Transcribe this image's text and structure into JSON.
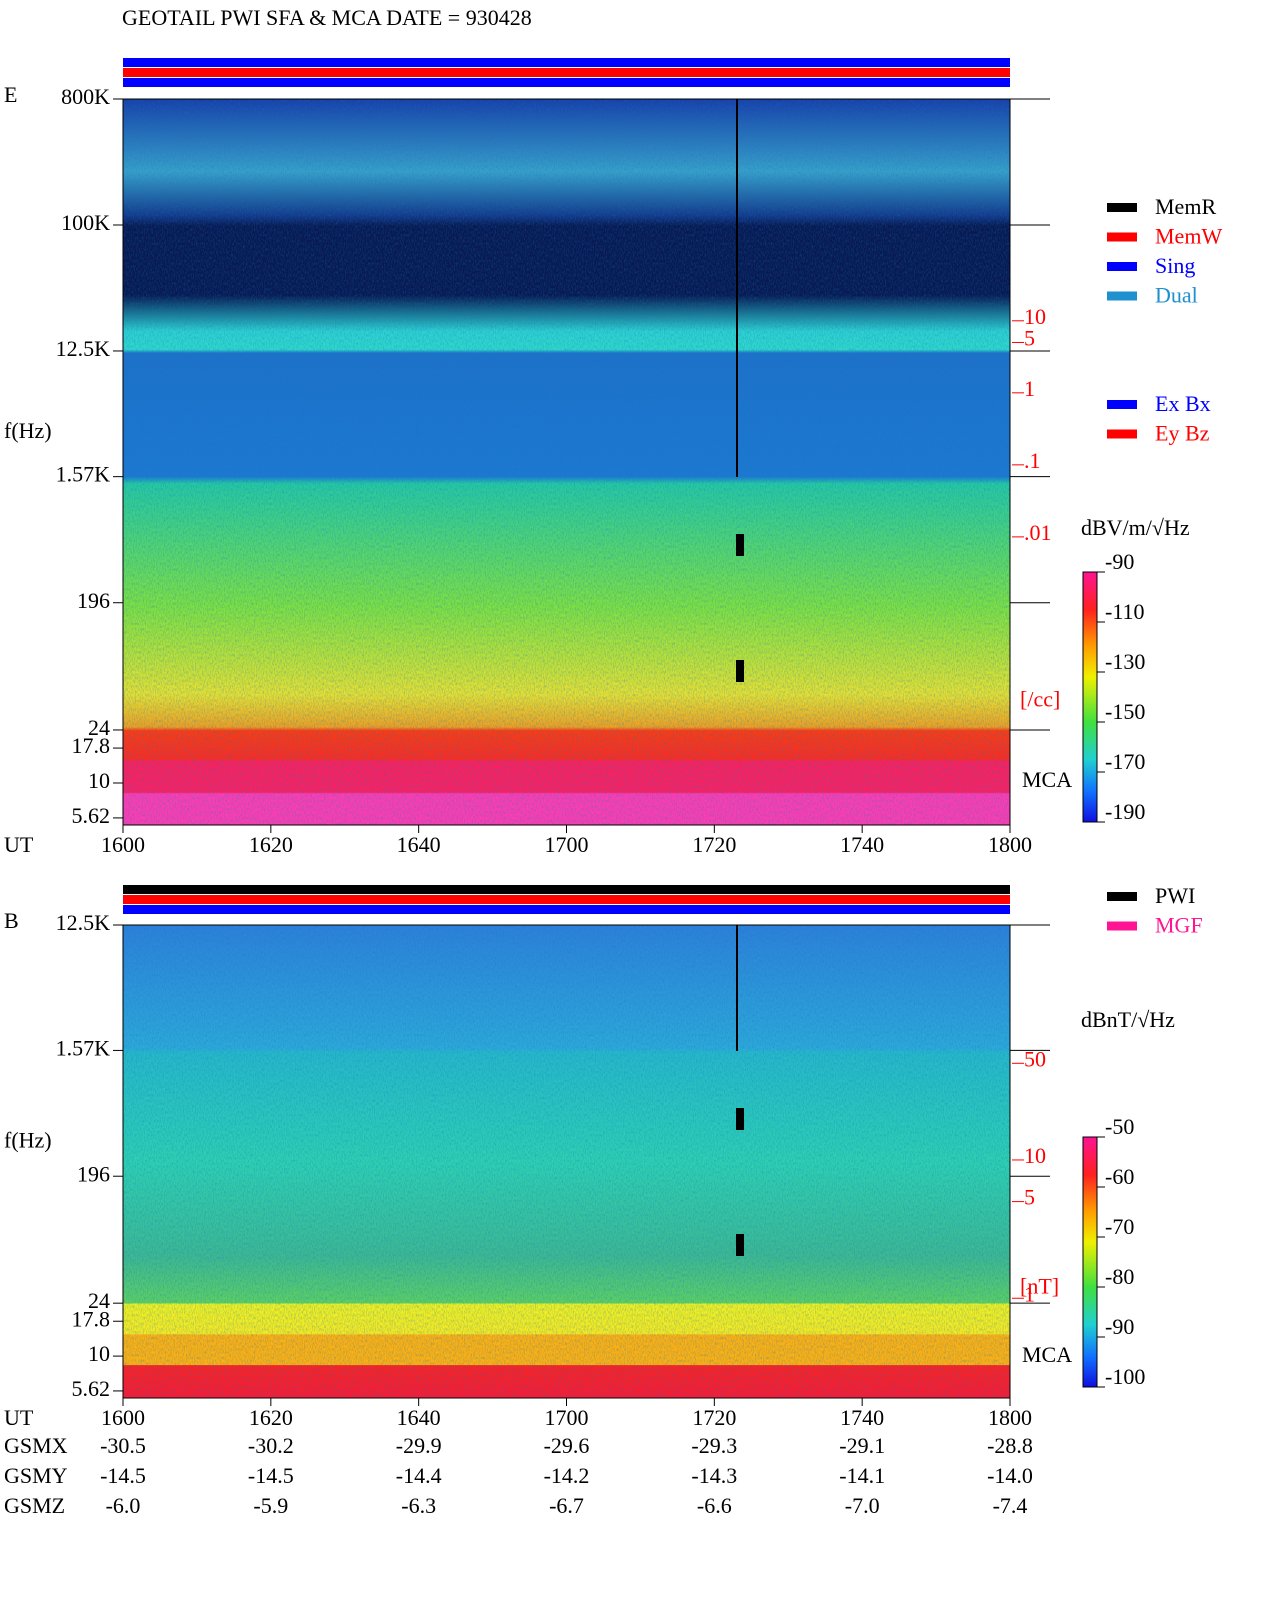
{
  "title": "GEOTAIL  PWI SFA & MCA   DATE = 930428",
  "chart_data": [
    {
      "type": "spectrogram",
      "panel_label": "E",
      "ylabel": "f(Hz)",
      "xlabel": "UT",
      "log_y": true,
      "ylim": [
        5,
        800000
      ],
      "yticks": [
        {
          "value": 800000,
          "label": "800K"
        },
        {
          "value": 100000,
          "label": "100K"
        },
        {
          "value": 12500,
          "label": "12.5K"
        },
        {
          "value": 1570,
          "label": "1.57K"
        },
        196,
        24,
        17.8,
        10,
        5.62
      ],
      "categories": [
        "1600",
        "1620",
        "1640",
        "1700",
        "1720",
        "1740",
        "1800"
      ],
      "log_y2": true,
      "y2lim": [
        1e-06,
        12000
      ],
      "y2ticks": [
        10,
        5,
        1,
        {
          "value": 0.1,
          "label": ".1"
        },
        {
          "value": 0.01,
          "label": ".01"
        }
      ],
      "y2label": "[/cc]",
      "band_label": "MCA",
      "status_colors": [
        "#0000ff",
        "#ff0000",
        "#0000ff"
      ],
      "colorbar": {
        "label": "dBV/m/√Hz",
        "lim": [
          -190,
          -90
        ],
        "ticks": [
          -90,
          -110,
          -130,
          -150,
          -170,
          -190
        ]
      },
      "legend": [
        {
          "name": "MemR",
          "color": "#000000"
        },
        {
          "name": "MemW",
          "color": "#ff0000"
        },
        {
          "name": "Sing",
          "color": "#0000ff"
        },
        {
          "name": "Dual",
          "color": "#1e8fcf"
        }
      ],
      "legend2": [
        {
          "name": "Ex Bx",
          "color": "#0000ff"
        },
        {
          "name": "Ey Bz",
          "color": "#ff0000"
        }
      ]
    },
    {
      "type": "spectrogram",
      "panel_label": "B",
      "ylabel": "f(Hz)",
      "xlabel": "UT",
      "log_y": true,
      "ylim": [
        5,
        12500
      ],
      "yticks": [
        {
          "value": 12500,
          "label": "12.5K"
        },
        {
          "value": 1570,
          "label": "1.57K"
        },
        196,
        24,
        17.8,
        10,
        5.62
      ],
      "categories": [
        "1600",
        "1620",
        "1640",
        "1700",
        "1720",
        "1740",
        "1800"
      ],
      "log_y2": true,
      "y2lim": [
        0.19,
        500
      ],
      "y2ticks": [
        50,
        10,
        5,
        1
      ],
      "y2label": "[nT]",
      "band_label": "MCA",
      "status_colors": [
        "#000000",
        "#ff0000",
        "#0000ff"
      ],
      "colorbar": {
        "label": "dBnT/√Hz",
        "lim": [
          -100,
          -50
        ],
        "ticks": [
          -50,
          -60,
          -70,
          -80,
          -90,
          -100
        ]
      },
      "legend": [
        {
          "name": "PWI",
          "color": "#000000"
        },
        {
          "name": "MGF",
          "color": "#ff1493"
        }
      ]
    }
  ],
  "ephemeris": {
    "rows": [
      {
        "name": "GSMX",
        "values": [
          "-30.5",
          "-30.2",
          "-29.9",
          "-29.6",
          "-29.3",
          "-29.1",
          "-28.8"
        ]
      },
      {
        "name": "GSMY",
        "values": [
          "-14.5",
          "-14.5",
          "-14.4",
          "-14.2",
          "-14.3",
          "-14.1",
          "-14.0"
        ]
      },
      {
        "name": "GSMZ",
        "values": [
          "-6.0",
          "-5.9",
          "-6.3",
          "-6.7",
          "-6.6",
          "-7.0",
          "-7.4"
        ]
      }
    ]
  }
}
